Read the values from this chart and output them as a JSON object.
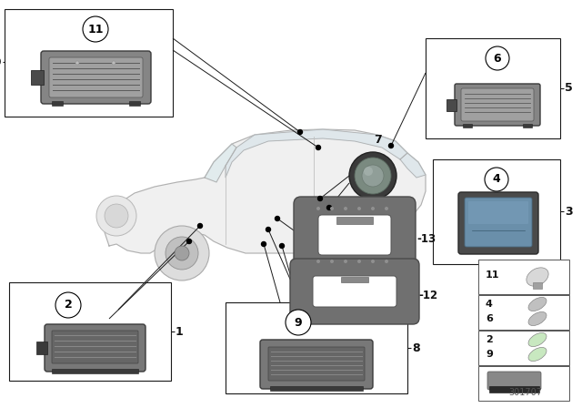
{
  "bg_color": "#ffffff",
  "diagram_id": "301707",
  "fig_w": 6.4,
  "fig_h": 4.48,
  "dpi": 100,
  "line_color": "#1a1a1a",
  "box_color": "#1a1a1a",
  "lamp_body_color": "#6a6a6a",
  "lamp_highlight": "#9a9a9a",
  "lamp_dark": "#4a4a4a",
  "gasket_color": "#707070",
  "car_line_color": "#b0b0b0",
  "text_color": "#111111"
}
